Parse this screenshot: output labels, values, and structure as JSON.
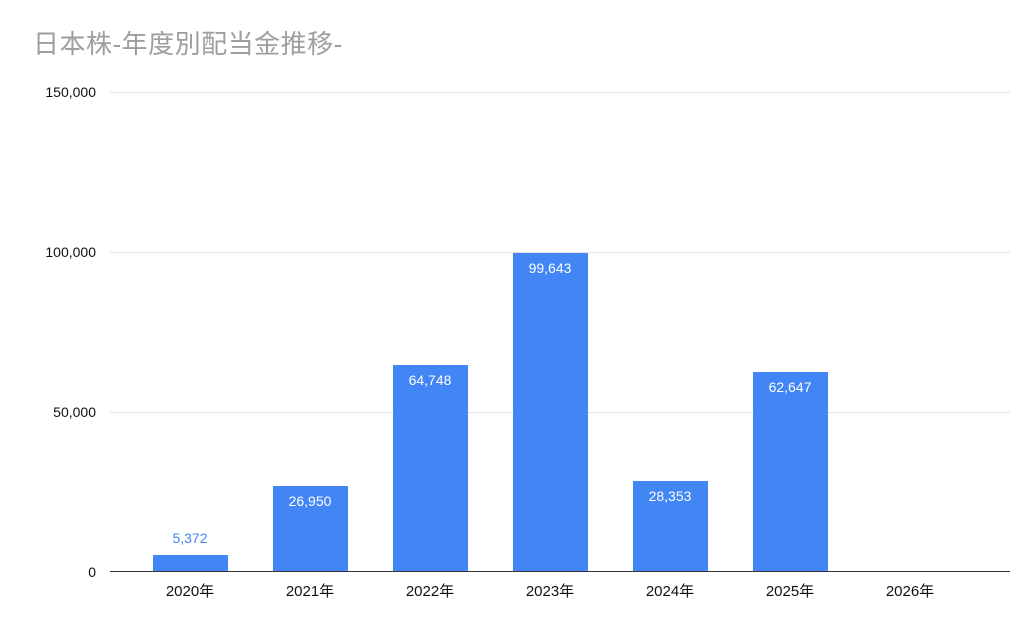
{
  "chart_data": {
    "type": "bar",
    "title": "日本株-年度別配当金推移-",
    "categories": [
      "2020年",
      "2021年",
      "2022年",
      "2023年",
      "2024年",
      "2025年",
      "2026年"
    ],
    "values": [
      5372,
      26950,
      64748,
      99643,
      28353,
      62647,
      0
    ],
    "data_labels": [
      "5,372",
      "26,950",
      "64,748",
      "99,643",
      "28,353",
      "62,647",
      ""
    ],
    "xlabel": "",
    "ylabel": "",
    "ylim": [
      0,
      150000
    ],
    "yticks": [
      0,
      50000,
      100000,
      150000
    ],
    "ytick_labels": [
      "0",
      "50,000",
      "100,000",
      "150,000"
    ],
    "grid": true,
    "legend": "none",
    "bar_color": "#4285F4",
    "label_inside_color": "#ffffff",
    "label_outside_color": "#4285F4",
    "title_color": "#9e9e9e",
    "axis_line_color": "#333333",
    "gridline_color": "#e3e3e3"
  }
}
